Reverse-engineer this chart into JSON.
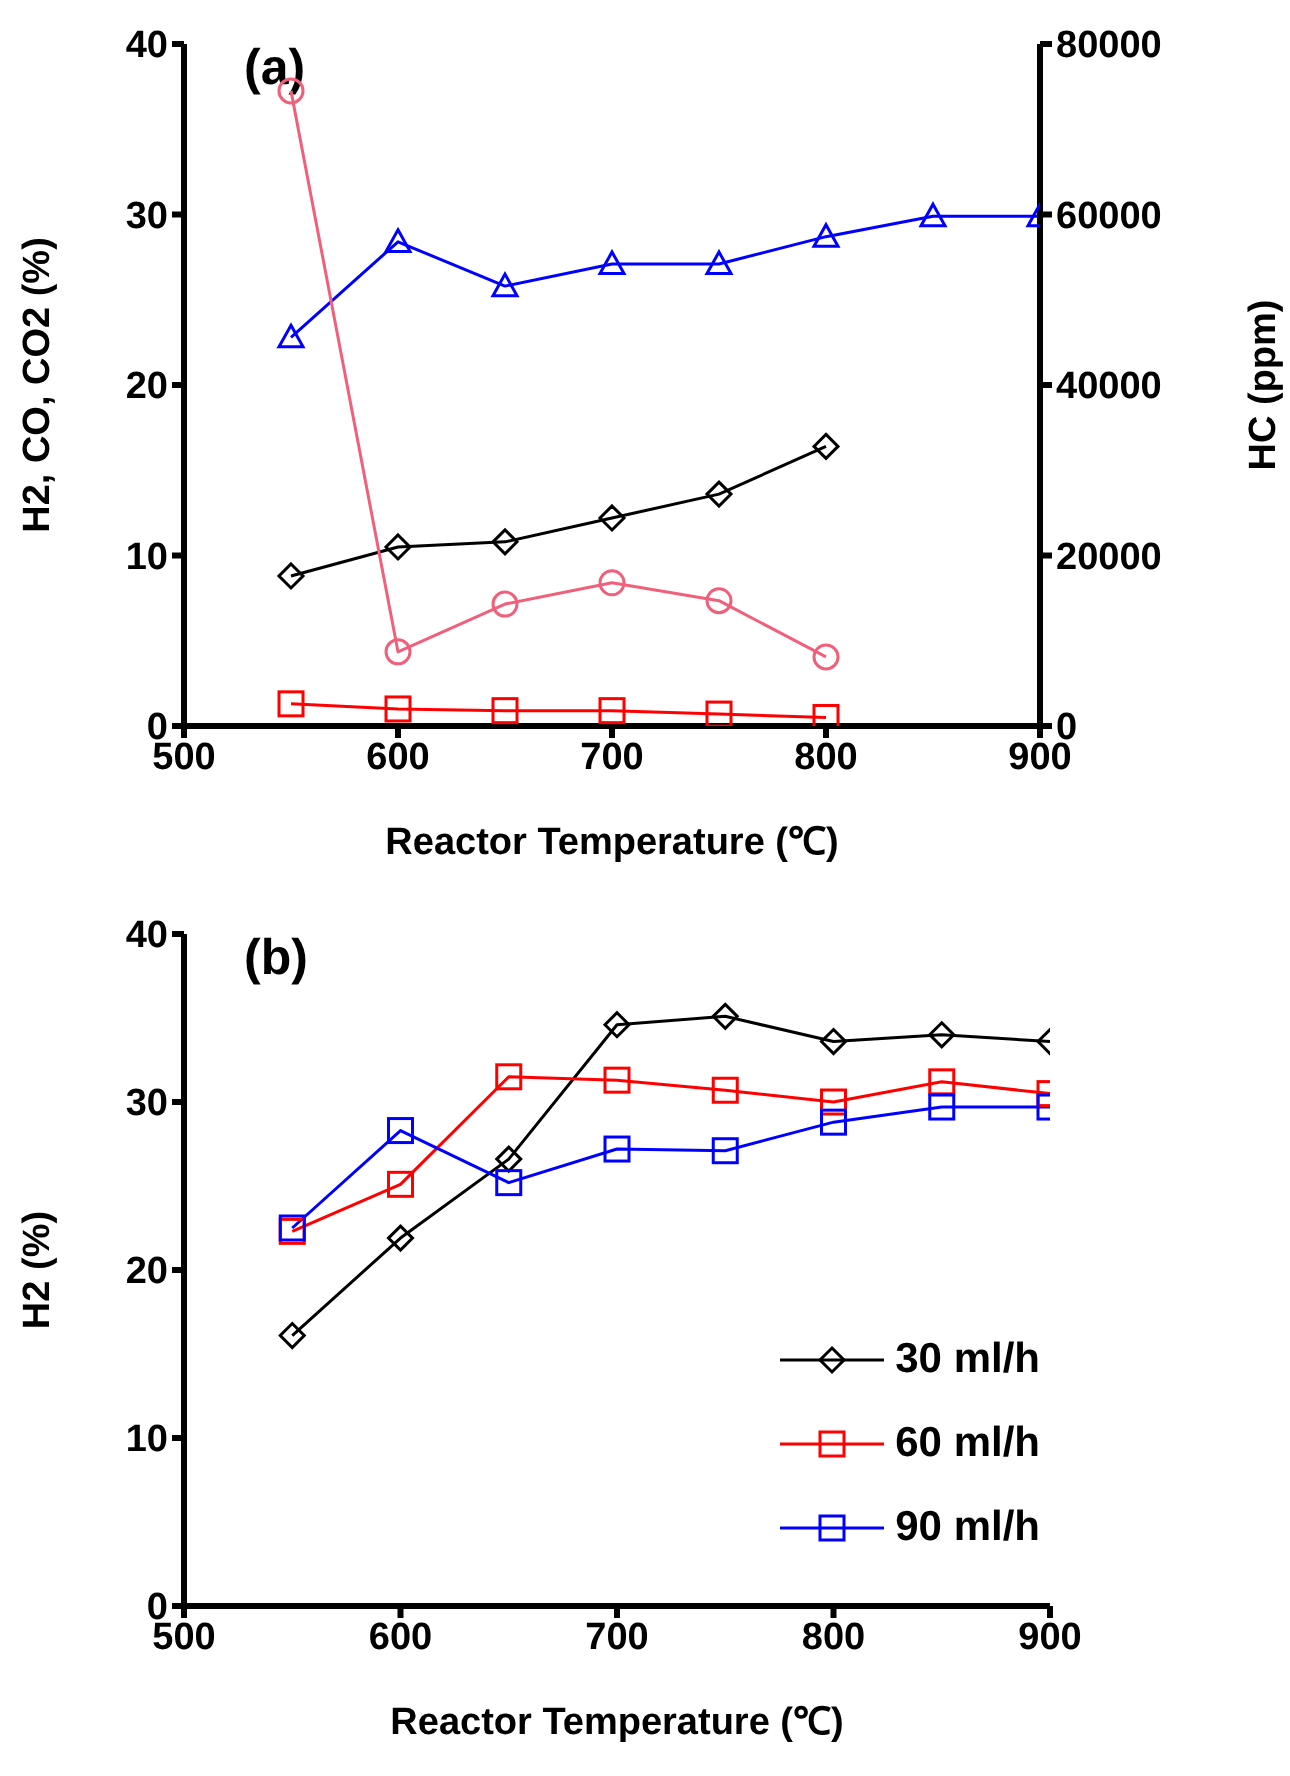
{
  "chart_data": [
    {
      "type": "line",
      "title": "(a)",
      "xlabel": "Reactor Temperature (℃)",
      "ylabel": "H2, CO, CO2 (%)",
      "y2label": "HC (ppm)",
      "x": [
        550,
        600,
        650,
        700,
        750,
        800,
        850,
        900
      ],
      "xlim": [
        500,
        900
      ],
      "xticks": [
        500,
        600,
        700,
        800,
        900
      ],
      "ylim": [
        0,
        40
      ],
      "yticks": [
        0,
        10,
        20,
        30,
        40
      ],
      "y2lim": [
        0,
        80000
      ],
      "y2ticks": [
        0,
        20000,
        40000,
        60000,
        80000
      ],
      "grid": false,
      "legend": false,
      "series": [
        {
          "color": "#0000ff",
          "marker": "triangle",
          "values": [
            22.8,
            28.4,
            25.8,
            27.1,
            27.1,
            28.7,
            29.9,
            29.9
          ]
        },
        {
          "color": "#000000",
          "marker": "diamond",
          "values": [
            8.8,
            10.5,
            10.8,
            12.2,
            13.6,
            16.4,
            null,
            null
          ]
        },
        {
          "color": "#f0607a",
          "marker": "circle",
          "axis": "y2",
          "values": [
            74500,
            8700,
            14300,
            16800,
            14700,
            8100,
            null,
            null
          ]
        },
        {
          "color": "#ff0000",
          "marker": "square",
          "values": [
            1.3,
            1.0,
            0.9,
            0.9,
            0.7,
            0.5,
            null,
            null
          ]
        }
      ]
    },
    {
      "type": "line",
      "title": "(b)",
      "xlabel": "Reactor Temperature (℃)",
      "ylabel": "H2 (%)",
      "x": [
        550,
        600,
        650,
        700,
        750,
        800,
        850,
        900
      ],
      "xlim": [
        500,
        900
      ],
      "xticks": [
        500,
        600,
        700,
        800,
        900
      ],
      "ylim": [
        0,
        40
      ],
      "yticks": [
        0,
        10,
        20,
        30,
        40
      ],
      "grid": false,
      "legend": "bottom right",
      "series": [
        {
          "name": "30 ml/h",
          "color": "#000000",
          "marker": "diamond",
          "values": [
            16.1,
            21.9,
            26.6,
            34.6,
            35.1,
            33.6,
            34.0,
            33.6
          ]
        },
        {
          "name": "60 ml/h",
          "color": "#ff0000",
          "marker": "square",
          "values": [
            22.3,
            25.1,
            31.5,
            31.3,
            30.7,
            30.0,
            31.2,
            30.5
          ]
        },
        {
          "name": "90 ml/h",
          "color": "#0000ff",
          "marker": "square",
          "values": [
            22.5,
            28.3,
            25.2,
            27.2,
            27.1,
            28.8,
            29.7,
            29.7
          ]
        }
      ]
    }
  ]
}
